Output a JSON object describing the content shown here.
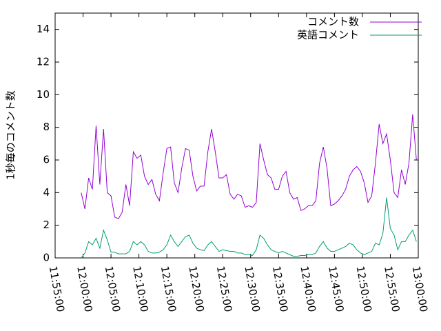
{
  "chart_data": {
    "type": "line",
    "y_label": "1秒毎のコメント数",
    "x": [
      "11:59:40",
      "12:00:20",
      "12:01:00",
      "12:01:40",
      "12:02:20",
      "12:03:00",
      "12:03:40",
      "12:04:20",
      "12:05:00",
      "12:05:40",
      "12:06:20",
      "12:07:00",
      "12:07:40",
      "12:08:20",
      "12:09:00",
      "12:09:40",
      "12:10:20",
      "12:11:00",
      "12:11:40",
      "12:12:20",
      "12:13:00",
      "12:13:40",
      "12:14:20",
      "12:15:00",
      "12:15:40",
      "12:16:20",
      "12:17:00",
      "12:17:40",
      "12:18:20",
      "12:19:00",
      "12:19:40",
      "12:20:20",
      "12:21:00",
      "12:21:40",
      "12:22:20",
      "12:23:00",
      "12:23:40",
      "12:24:20",
      "12:25:00",
      "12:25:40",
      "12:26:20",
      "12:27:00",
      "12:27:40",
      "12:28:20",
      "12:29:00",
      "12:29:40",
      "12:30:20",
      "12:31:00",
      "12:31:40",
      "12:32:20",
      "12:33:00",
      "12:33:40",
      "12:34:20",
      "12:35:00",
      "12:35:40",
      "12:36:20",
      "12:37:00",
      "12:37:40",
      "12:38:20",
      "12:39:00",
      "12:39:40",
      "12:40:20",
      "12:41:00",
      "12:41:40",
      "12:42:20",
      "12:43:00",
      "12:43:40",
      "12:44:20",
      "12:45:00",
      "12:45:40",
      "12:46:20",
      "12:47:00",
      "12:47:40",
      "12:48:20",
      "12:49:00",
      "12:49:40",
      "12:50:20",
      "12:51:00",
      "12:51:40",
      "12:52:20",
      "12:53:00",
      "12:53:40",
      "12:54:20",
      "12:55:00",
      "12:55:40",
      "12:56:20",
      "12:57:00",
      "12:57:40",
      "12:58:20",
      "12:59:00",
      "12:59:40"
    ],
    "series": [
      {
        "name": "コメント数",
        "color": "#9400d3",
        "values": [
          4.0,
          3.0,
          4.9,
          4.2,
          8.1,
          4.5,
          7.9,
          4.0,
          3.8,
          2.5,
          2.4,
          2.8,
          4.5,
          3.2,
          6.5,
          6.1,
          6.3,
          5.0,
          4.5,
          4.8,
          3.9,
          3.5,
          5.2,
          6.7,
          6.8,
          4.6,
          4.0,
          5.5,
          6.7,
          6.6,
          5.0,
          4.1,
          4.4,
          4.4,
          6.5,
          7.9,
          6.5,
          4.9,
          4.9,
          5.1,
          3.9,
          3.6,
          3.9,
          3.8,
          3.1,
          3.2,
          3.1,
          3.4,
          7.0,
          6.0,
          5.1,
          4.9,
          4.2,
          4.2,
          5.0,
          5.3,
          4.0,
          3.6,
          3.7,
          2.9,
          3.0,
          3.2,
          3.2,
          3.5,
          5.8,
          6.8,
          5.5,
          3.2,
          3.3,
          3.5,
          3.8,
          4.2,
          5.0,
          5.4,
          5.6,
          5.3,
          4.6,
          3.4,
          3.8,
          5.8,
          8.2,
          7.0,
          7.6,
          6.0,
          4.0,
          3.7,
          5.4,
          4.5,
          5.8,
          8.8,
          6.0
        ]
      },
      {
        "name": "英語コメント",
        "color": "#009e73",
        "values": [
          0.0,
          0.3,
          1.0,
          0.8,
          1.2,
          0.6,
          1.7,
          1.1,
          0.35,
          0.35,
          0.25,
          0.25,
          0.25,
          0.4,
          1.0,
          0.8,
          1.0,
          0.8,
          0.4,
          0.3,
          0.3,
          0.35,
          0.5,
          0.8,
          1.4,
          1.0,
          0.7,
          1.0,
          1.3,
          1.4,
          0.9,
          0.6,
          0.5,
          0.45,
          0.8,
          1.0,
          0.7,
          0.4,
          0.5,
          0.45,
          0.4,
          0.4,
          0.3,
          0.3,
          0.2,
          0.2,
          0.15,
          0.5,
          1.4,
          1.2,
          0.8,
          0.5,
          0.4,
          0.3,
          0.4,
          0.3,
          0.2,
          0.1,
          0.1,
          0.15,
          0.15,
          0.2,
          0.2,
          0.3,
          0.7,
          1.0,
          0.6,
          0.4,
          0.4,
          0.5,
          0.6,
          0.7,
          0.9,
          0.8,
          0.5,
          0.3,
          0.2,
          0.3,
          0.4,
          0.9,
          0.8,
          1.5,
          3.7,
          1.8,
          1.4,
          0.5,
          1.0,
          1.0,
          1.4,
          1.7,
          1.0
        ]
      }
    ],
    "xlim": [
      "11:55:00",
      "13:00:00"
    ],
    "xticks": [
      "11:55:00",
      "12:00:00",
      "12:05:00",
      "12:10:00",
      "12:15:00",
      "12:20:00",
      "12:25:00",
      "12:30:00",
      "12:35:00",
      "12:40:00",
      "12:45:00",
      "12:50:00",
      "12:55:00",
      "13:00:00"
    ],
    "ylim": [
      0,
      15
    ],
    "yticks": [
      0,
      2,
      4,
      6,
      8,
      10,
      12,
      14
    ],
    "legend": "top-right",
    "grid": false
  }
}
